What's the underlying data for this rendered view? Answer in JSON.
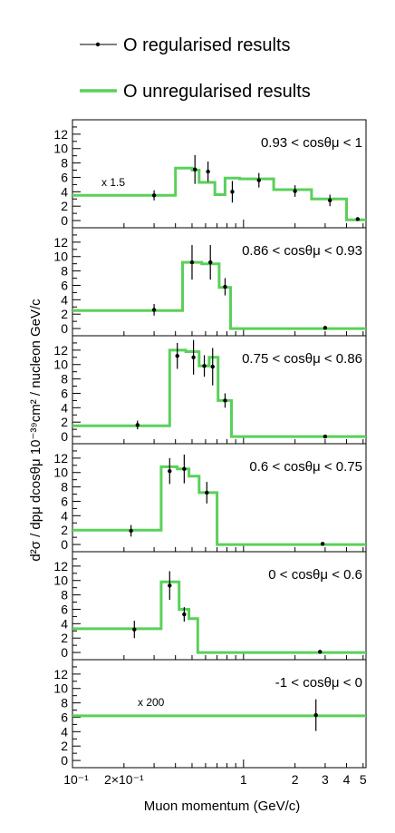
{
  "legend": [
    {
      "label": "O regularised results"
    },
    {
      "label": "O unregularised results"
    }
  ],
  "colors": {
    "unregularised": "#5ad05a",
    "regularised": "#000000"
  },
  "x_axis": {
    "title": "Muon momentum (GeV/c)",
    "tick_labels": [
      {
        "x": 0.1,
        "text": "10⁻¹"
      },
      {
        "x": 0.2,
        "text": "2×10⁻¹"
      },
      {
        "x": 1,
        "text": "1"
      },
      {
        "x": 2,
        "text": "2"
      },
      {
        "x": 3,
        "text": "3"
      },
      {
        "x": 4,
        "text": "4"
      },
      {
        "x": 5,
        "text": "5"
      }
    ]
  },
  "y_axis": {
    "title": "d²σ / dpμ dcosθμ   10⁻³⁹cm² / nucleon GeV/c",
    "tick_labels": [
      "0",
      "2",
      "4",
      "6",
      "8",
      "10",
      "12"
    ]
  },
  "chart_data": [
    {
      "type": "line",
      "range_label": "0.93 < cosθμ < 1",
      "scale_label": "x 1.5",
      "xlim": [
        0.1,
        5.2
      ],
      "ylim": [
        -1,
        14
      ],
      "log_x": true,
      "unregularised": {
        "edges": [
          0.1,
          0.4,
          0.5,
          0.55,
          0.68,
          0.78,
          0.95,
          1.5,
          2.5,
          4.0,
          5.2
        ],
        "values": [
          3.5,
          7.3,
          7.0,
          5.3,
          3.6,
          5.9,
          5.8,
          4.3,
          3.0,
          0.1
        ]
      },
      "regularised": [
        {
          "x": 0.3,
          "y": 3.5,
          "err": 0.7
        },
        {
          "x": 0.52,
          "y": 7.1,
          "err": 2.0
        },
        {
          "x": 0.62,
          "y": 6.8,
          "err": 1.4
        },
        {
          "x": 0.86,
          "y": 4.0,
          "err": 1.5
        },
        {
          "x": 1.23,
          "y": 5.6,
          "err": 1.0
        },
        {
          "x": 2.0,
          "y": 4.1,
          "err": 0.8
        },
        {
          "x": 3.2,
          "y": 2.8,
          "err": 0.8
        },
        {
          "x": 4.65,
          "y": 0.2,
          "err": 0.2
        }
      ]
    },
    {
      "type": "line",
      "range_label": "0.86 < cosθμ < 0.93",
      "scale_label": "",
      "xlim": [
        0.1,
        5.2
      ],
      "ylim": [
        -1,
        14
      ],
      "log_x": true,
      "unregularised": {
        "edges": [
          0.1,
          0.44,
          0.57,
          0.72,
          0.84,
          5.2
        ],
        "values": [
          2.5,
          9.2,
          9.0,
          5.7,
          0.0
        ]
      },
      "regularised": [
        {
          "x": 0.3,
          "y": 2.6,
          "err": 0.8
        },
        {
          "x": 0.5,
          "y": 9.2,
          "err": 2.4
        },
        {
          "x": 0.64,
          "y": 9.2,
          "err": 2.4
        },
        {
          "x": 0.78,
          "y": 5.8,
          "err": 1.2
        },
        {
          "x": 3.0,
          "y": 0.1,
          "err": 0.1
        }
      ]
    },
    {
      "type": "line",
      "range_label": "0.75 <  cosθμ < 0.86",
      "scale_label": "",
      "xlim": [
        0.1,
        5.2
      ],
      "ylim": [
        -1,
        14
      ],
      "log_x": true,
      "unregularised": {
        "edges": [
          0.1,
          0.37,
          0.46,
          0.55,
          0.63,
          0.71,
          0.85,
          5.2
        ],
        "values": [
          1.5,
          12.0,
          11.8,
          9.8,
          11.0,
          5.0,
          0.0
        ]
      },
      "regularised": [
        {
          "x": 0.24,
          "y": 1.6,
          "err": 0.6
        },
        {
          "x": 0.41,
          "y": 11.2,
          "err": 1.8
        },
        {
          "x": 0.51,
          "y": 11.0,
          "err": 2.4
        },
        {
          "x": 0.59,
          "y": 9.8,
          "err": 1.5
        },
        {
          "x": 0.66,
          "y": 9.7,
          "err": 2.6
        },
        {
          "x": 0.78,
          "y": 5.0,
          "err": 1.0
        },
        {
          "x": 3.0,
          "y": 0.0,
          "err": 0.1
        }
      ]
    },
    {
      "type": "line",
      "range_label": "0.6 < cosθμ < 0.75",
      "scale_label": "",
      "xlim": [
        0.1,
        5.2
      ],
      "ylim": [
        -1,
        14
      ],
      "log_x": true,
      "unregularised": {
        "edges": [
          0.1,
          0.33,
          0.41,
          0.48,
          0.55,
          0.7,
          5.2
        ],
        "values": [
          2.0,
          10.8,
          10.5,
          9.5,
          7.2,
          0.0
        ]
      },
      "regularised": [
        {
          "x": 0.22,
          "y": 1.9,
          "err": 0.8
        },
        {
          "x": 0.37,
          "y": 10.2,
          "err": 1.8
        },
        {
          "x": 0.45,
          "y": 10.5,
          "err": 2.0
        },
        {
          "x": 0.61,
          "y": 7.2,
          "err": 1.5
        },
        {
          "x": 2.9,
          "y": 0.1,
          "err": 0.1
        }
      ]
    },
    {
      "type": "line",
      "range_label": "0 < cosθμ < 0.6",
      "scale_label": "",
      "xlim": [
        0.1,
        5.2
      ],
      "ylim": [
        -1,
        14
      ],
      "log_x": true,
      "unregularised": {
        "edges": [
          0.1,
          0.33,
          0.42,
          0.48,
          0.54,
          5.2
        ],
        "values": [
          3.3,
          9.8,
          6.0,
          4.7,
          0.0
        ]
      },
      "regularised": [
        {
          "x": 0.23,
          "y": 3.2,
          "err": 1.2
        },
        {
          "x": 0.37,
          "y": 9.3,
          "err": 2.0
        },
        {
          "x": 0.45,
          "y": 5.3,
          "err": 1.0
        },
        {
          "x": 2.8,
          "y": 0.1,
          "err": 0.1
        }
      ]
    },
    {
      "type": "line",
      "range_label": "-1 < cosθμ < 0",
      "scale_label": "x 200",
      "xlim": [
        0.1,
        5.2
      ],
      "ylim": [
        -1,
        14
      ],
      "log_x": true,
      "unregularised": {
        "edges": [
          0.1,
          5.2
        ],
        "values": [
          6.2
        ]
      },
      "regularised": [
        {
          "x": 2.65,
          "y": 6.3,
          "err": 2.2
        }
      ]
    }
  ]
}
